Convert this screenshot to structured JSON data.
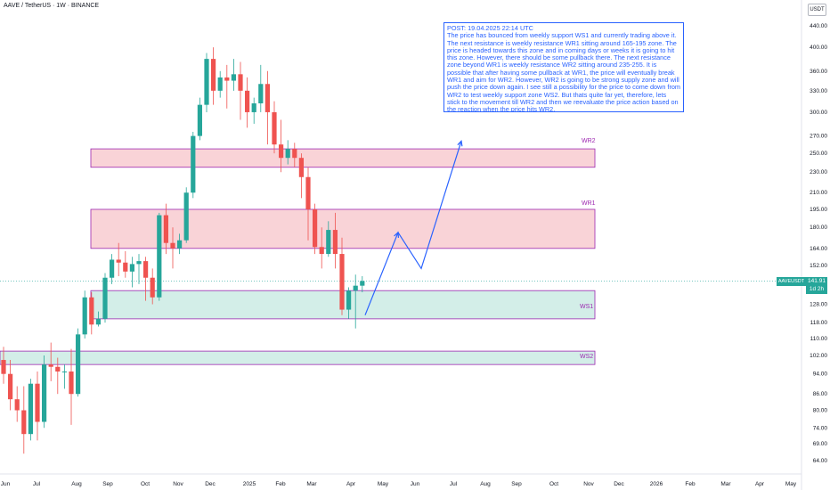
{
  "header": {
    "title": "AAVE / TetherUS · 1W · BINANCE",
    "currency": "USDT"
  },
  "note": {
    "text": "POST: 19.04.2025 22:14 UTC\nThe price has bounced from weekly support WS1 and currently trading above it. The next resistance is weekly resistance WR1 sitting around 165-195 zone. The price is headed towards this zone and in coming days or weeks it is going to hit this zone. However, there should be some pullback there. The next resistance zone beyond WR1 is weekly resistance WR2 sitting around 235-255. It is possible that after having some pullback at WR1, the price will eventually break WR1 and aim for WR2. However, WR2 is going to be strong supply zone and will push the price down again. I see still a possibility for the price to come down from WR2 to test weekly support zone WS2. But thats quite far yet, therefore, lets stick to the movement till WR2 and then we reevaluate the price action based on the reaction when the price hits WR2."
  },
  "last_price": {
    "symbol": "AAVEUSDT",
    "value": "141.91",
    "countdown": "1d 2h"
  },
  "colors": {
    "up": "#26a69a",
    "down": "#ef5350",
    "resistance_fill": "#f9d3d7",
    "support_fill": "#d3eee8",
    "zone_border": "#9c27b0",
    "projection": "#2962ff"
  },
  "chart_data": {
    "type": "candlestick",
    "y_scale": "log",
    "ylim": [
      60,
      450
    ],
    "y_ticks": [
      "440.00",
      "400.00",
      "360.00",
      "330.00",
      "300.00",
      "270.00",
      "250.00",
      "230.00",
      "210.00",
      "195.00",
      "180.00",
      "164.00",
      "152.00",
      "140.00",
      "128.00",
      "118.00",
      "110.00",
      "102.00",
      "94.00",
      "86.00",
      "80.00",
      "74.00",
      "69.00",
      "64.00"
    ],
    "x_labels": [
      "Jun",
      "Jul",
      "Aug",
      "Sep",
      "Oct",
      "Nov",
      "Dec",
      "2025",
      "Feb",
      "Mar",
      "Apr",
      "May",
      "Jun",
      "Jul",
      "Aug",
      "Sep",
      "Oct",
      "Nov",
      "Dec",
      "2026",
      "Feb",
      "Mar",
      "Apr",
      "May"
    ],
    "candles": [
      [
        100.0,
        106.0,
        94.0,
        90.0
      ],
      [
        94.0,
        100.0,
        84.0,
        80.0
      ],
      [
        84.0,
        89.0,
        80.0,
        76.0
      ],
      [
        80.0,
        89.0,
        72.0,
        66.0
      ],
      [
        72.0,
        92.0,
        90.0,
        70.0
      ],
      [
        90.0,
        95.0,
        76.0,
        70.0
      ],
      [
        76.0,
        102.0,
        98.0,
        74.0
      ],
      [
        98.0,
        108.0,
        97.0,
        91.0
      ],
      [
        97.0,
        101.0,
        95.0,
        86.0
      ],
      [
        95.0,
        98.0,
        95.0,
        88.0
      ],
      [
        95.0,
        105.0,
        86.0,
        75.0
      ],
      [
        86.0,
        115.0,
        112.0,
        85.0
      ],
      [
        112.0,
        136.0,
        132.0,
        110.0
      ],
      [
        132.0,
        135.0,
        117.0,
        112.0
      ],
      [
        117.0,
        124.0,
        120.0,
        116.0
      ],
      [
        120.0,
        147.0,
        144.0,
        118.0
      ],
      [
        144.0,
        160.0,
        156.0,
        140.0
      ],
      [
        156.0,
        168.0,
        154.0,
        145.0
      ],
      [
        154.0,
        162.0,
        148.0,
        144.0
      ],
      [
        148.0,
        158.0,
        153.0,
        138.0
      ],
      [
        153.0,
        160.0,
        155.0,
        140.0
      ],
      [
        155.0,
        158.0,
        144.0,
        130.0
      ],
      [
        144.0,
        150.0,
        132.0,
        128.0
      ],
      [
        132.0,
        192.0,
        190.0,
        130.0
      ],
      [
        190.0,
        200.0,
        168.0,
        160.0
      ],
      [
        168.0,
        180.0,
        164.0,
        150.0
      ],
      [
        164.0,
        175.0,
        170.0,
        160.0
      ],
      [
        170.0,
        215.0,
        210.0,
        168.0
      ],
      [
        210.0,
        275.0,
        270.0,
        205.0
      ],
      [
        270.0,
        320.0,
        310.0,
        265.0
      ],
      [
        310.0,
        390.0,
        380.0,
        300.0
      ],
      [
        380.0,
        400.0,
        330.0,
        310.0
      ],
      [
        330.0,
        360.0,
        350.0,
        320.0
      ],
      [
        350.0,
        370.0,
        345.0,
        305.0
      ],
      [
        345.0,
        380.0,
        355.0,
        330.0
      ],
      [
        355.0,
        375.0,
        330.0,
        290.0
      ],
      [
        330.0,
        350.0,
        300.0,
        280.0
      ],
      [
        300.0,
        320.0,
        312.0,
        285.0
      ],
      [
        312.0,
        370.0,
        340.0,
        300.0
      ],
      [
        340.0,
        360.0,
        300.0,
        260.0
      ],
      [
        300.0,
        315.0,
        260.0,
        250.0
      ],
      [
        260.0,
        290.0,
        245.0,
        230.0
      ],
      [
        245.0,
        265.0,
        255.0,
        238.0
      ],
      [
        255.0,
        262.0,
        245.0,
        235.0
      ],
      [
        245.0,
        250.0,
        225.0,
        205.0
      ],
      [
        225.0,
        235.0,
        195.0,
        170.0
      ],
      [
        195.0,
        200.0,
        165.0,
        160.0
      ],
      [
        165.0,
        180.0,
        160.0,
        150.0
      ],
      [
        160.0,
        185.0,
        178.0,
        158.0
      ],
      [
        178.0,
        192.0,
        160.0,
        150.0
      ],
      [
        160.0,
        172.0,
        125.0,
        122.0
      ],
      [
        125.0,
        138.0,
        136.0,
        120.0
      ],
      [
        136.0,
        146.0,
        139.0,
        115.0
      ],
      [
        139.0,
        145.0,
        141.91,
        135.0
      ]
    ],
    "zones": [
      {
        "label": "WR2",
        "low": 235,
        "high": 255,
        "type": "resistance"
      },
      {
        "label": "WR1",
        "low": 164,
        "high": 195,
        "type": "resistance"
      },
      {
        "label": "WS1",
        "low": 120,
        "high": 136,
        "type": "support"
      },
      {
        "label": "WS2",
        "low": 98,
        "high": 104,
        "type": "support"
      }
    ],
    "projection_path": [
      122,
      176,
      150,
      264
    ],
    "current_price": 141.91
  }
}
